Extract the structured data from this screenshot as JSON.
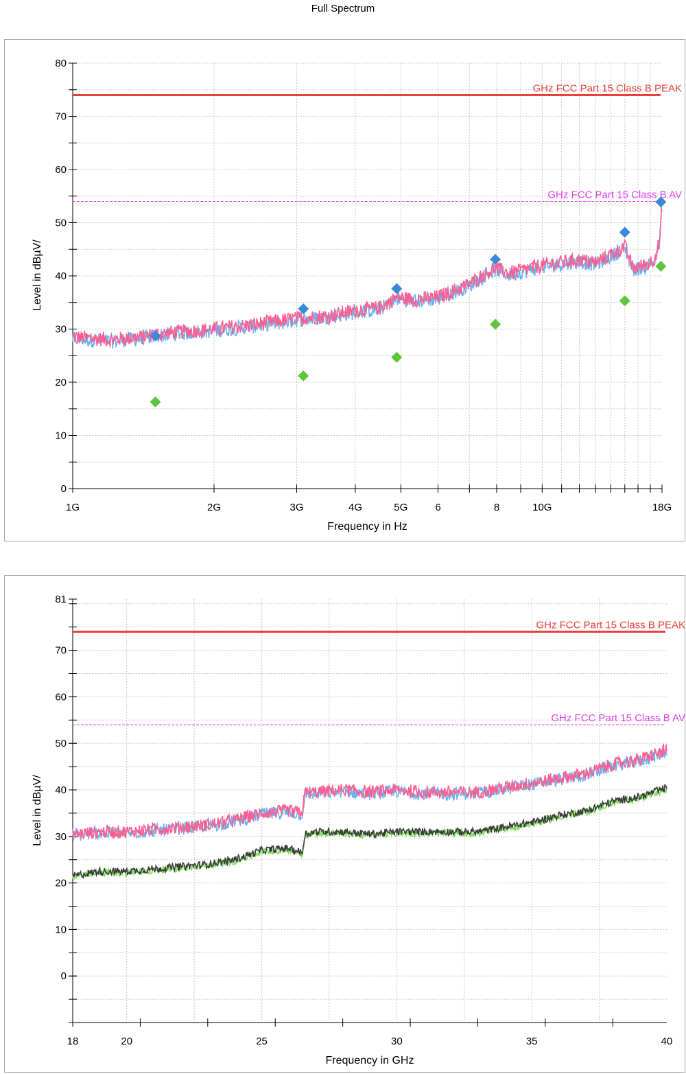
{
  "page": {
    "title": "Full Spectrum"
  },
  "colors": {
    "peak_limit": "#e8413c",
    "av_limit": "#e040f0",
    "peak_trace": "#ff5f91",
    "peak_trace_shadow": "#6db3ee",
    "avg_trace": "#3c3c3c",
    "avg_trace_shadow": "#7ee15a",
    "peak_marker": "#3a8ad8",
    "avg_marker": "#5ec63c",
    "grid": "#c8c8c8"
  },
  "chart_data": [
    {
      "type": "line",
      "xscale": "log",
      "xlabel": "Frequency in Hz",
      "ylabel": "Level in dBµV/",
      "xlim": [
        1,
        18
      ],
      "ylim": [
        0,
        80
      ],
      "grid": true,
      "x_tick_labels": [
        {
          "value": 1,
          "label": "1G"
        },
        {
          "value": 2,
          "label": "2G"
        },
        {
          "value": 3,
          "label": "3G"
        },
        {
          "value": 4,
          "label": "4G"
        },
        {
          "value": 5,
          "label": "5G"
        },
        {
          "value": 6,
          "label": "6"
        },
        {
          "value": 8,
          "label": "8"
        },
        {
          "value": 10,
          "label": "10G"
        },
        {
          "value": 18,
          "label": "18G"
        }
      ],
      "y_tick_labels": [
        0,
        10,
        20,
        30,
        40,
        50,
        60,
        70,
        80
      ],
      "limits": [
        {
          "name": "GHz FCC Part 15 Class B PEAK",
          "value": 74,
          "style": "solid"
        },
        {
          "name": "GHz FCC Part 15 Class B AV",
          "value": 54,
          "style": "dashed"
        }
      ],
      "series": [
        {
          "role": "peak",
          "x": [
            1.0,
            1.2,
            1.4,
            1.5,
            1.7,
            2.0,
            2.5,
            3.0,
            3.5,
            4.0,
            4.5,
            4.9,
            5.3,
            6.0,
            7.0,
            7.9,
            8.5,
            10.0,
            12.0,
            13.0,
            14.0,
            15.0,
            15.6,
            16.5,
            17.3,
            17.8,
            18.0
          ],
          "values": [
            28.5,
            28.0,
            28.5,
            29.0,
            29.5,
            30.0,
            31.0,
            32.0,
            32.5,
            33.5,
            34.0,
            36.0,
            35.5,
            36.0,
            38.5,
            41.5,
            40.5,
            42.0,
            43.0,
            42.5,
            44.0,
            45.5,
            41.5,
            42.0,
            43.0,
            46.5,
            53.5
          ]
        }
      ],
      "peak_markers": {
        "x": [
          1.5,
          3.1,
          4.9,
          7.95,
          15.0,
          17.9
        ],
        "values": [
          28.7,
          33.8,
          37.6,
          43.1,
          48.2,
          53.9
        ]
      },
      "avg_markers": {
        "x": [
          1.5,
          3.1,
          4.9,
          7.95,
          15.0,
          17.9
        ],
        "values": [
          16.3,
          21.2,
          24.7,
          30.9,
          35.3,
          41.8
        ]
      }
    },
    {
      "type": "line",
      "xlabel": "Frequency in GHz",
      "ylabel": "Level in dBµV/",
      "xlim": [
        18,
        40
      ],
      "ylim": [
        -10,
        81
      ],
      "grid": true,
      "x_tick_labels": [
        {
          "value": 18,
          "label": "18"
        },
        {
          "value": 20,
          "label": "20"
        },
        {
          "value": 25,
          "label": "25"
        },
        {
          "value": 30,
          "label": "30"
        },
        {
          "value": 35,
          "label": "35"
        },
        {
          "value": 40,
          "label": "40"
        }
      ],
      "y_tick_labels": [
        0,
        10,
        20,
        30,
        40,
        50,
        60,
        70,
        81
      ],
      "limits": [
        {
          "name": "GHz FCC Part 15 Class B PEAK",
          "value": 74,
          "style": "solid"
        },
        {
          "name": "GHz FCC Part 15 Class B AV",
          "value": 54,
          "style": "dashed"
        }
      ],
      "series": [
        {
          "role": "peak",
          "x": [
            18.0,
            19.0,
            20.0,
            21.0,
            22.0,
            23.0,
            24.0,
            25.0,
            26.0,
            26.5,
            26.6,
            27.0,
            28.0,
            29.0,
            30.0,
            31.0,
            32.0,
            33.0,
            34.0,
            35.0,
            36.0,
            37.0,
            38.0,
            39.0,
            40.0
          ],
          "values": [
            30.5,
            31.0,
            31.0,
            31.5,
            32.0,
            32.5,
            33.5,
            35.0,
            35.5,
            35.0,
            39.5,
            39.5,
            40.0,
            39.5,
            40.0,
            39.5,
            39.5,
            39.5,
            40.5,
            41.5,
            42.5,
            43.5,
            45.5,
            46.5,
            48.5
          ]
        },
        {
          "role": "average",
          "x": [
            18.0,
            19.0,
            20.0,
            21.0,
            22.0,
            23.0,
            24.0,
            25.0,
            26.0,
            26.5,
            26.6,
            27.0,
            28.0,
            29.0,
            30.0,
            31.0,
            32.0,
            33.0,
            34.0,
            35.0,
            36.0,
            37.0,
            38.0,
            39.0,
            40.0
          ],
          "values": [
            21.5,
            22.5,
            22.5,
            23.0,
            23.5,
            24.0,
            25.0,
            27.0,
            27.5,
            26.5,
            30.5,
            31.0,
            31.0,
            30.5,
            31.0,
            31.0,
            31.0,
            31.0,
            32.0,
            33.0,
            34.5,
            35.5,
            37.5,
            38.5,
            40.5
          ]
        }
      ]
    }
  ]
}
